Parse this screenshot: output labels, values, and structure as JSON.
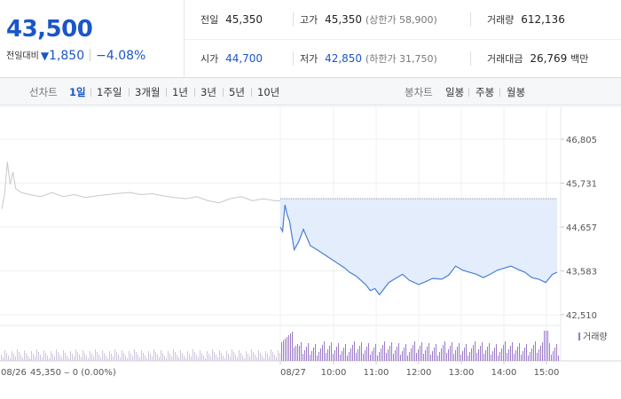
{
  "quote": {
    "price": "43,500",
    "change_label": "전일대비",
    "change_arrow": "▼",
    "change": "1,850",
    "change_pct": "−4.08%"
  },
  "info": {
    "prev_close_label": "전일",
    "prev_close": "45,350",
    "high_label": "고가",
    "high": "45,350",
    "upper_limit": "(상한가 58,900)",
    "volume_label": "거래량",
    "volume": "612,136",
    "open_label": "시가",
    "open": "44,700",
    "low_label": "저가",
    "low": "42,850",
    "lower_limit": "(하한가 31,750)",
    "amount_label": "거래대금",
    "amount": "26,769",
    "amount_unit": "백만"
  },
  "toolbar": {
    "line_label": "선차트",
    "periods": [
      "1일",
      "1주일",
      "3개월",
      "1년",
      "3년",
      "5년",
      "10년"
    ],
    "active_period": "1일",
    "candle_label": "봉차트",
    "candles": [
      "일봉",
      "주봉",
      "월봉"
    ]
  },
  "colors": {
    "accent": "#1a56c8",
    "today_line": "#4a7fd4",
    "today_fill": "#e3edfb",
    "prev_line": "#c8c8c8",
    "volume_bar": "#9a7ac8"
  },
  "chart_data": {
    "type": "line",
    "ylim": [
      42510,
      46805
    ],
    "yticks": [
      "46,805",
      "45,731",
      "44,657",
      "43,583",
      "42,510"
    ],
    "reference_price": 45350,
    "prev_day_label": "08/26",
    "prev_day_summary": "45,350 ‒ 0 (0.00%)",
    "day_label": "08/27",
    "time_labels": [
      "10:00",
      "11:00",
      "12:00",
      "13:00",
      "14:00",
      "15:00"
    ],
    "volume_legend": "거래량",
    "prev_series": [
      [
        0,
        45100
      ],
      [
        1,
        45450
      ],
      [
        2,
        46250
      ],
      [
        3,
        45700
      ],
      [
        4,
        46000
      ],
      [
        5,
        45600
      ],
      [
        7,
        45500
      ],
      [
        10,
        45450
      ],
      [
        14,
        45400
      ],
      [
        18,
        45500
      ],
      [
        22,
        45400
      ],
      [
        26,
        45450
      ],
      [
        30,
        45380
      ],
      [
        34,
        45420
      ],
      [
        38,
        45450
      ],
      [
        42,
        45480
      ],
      [
        46,
        45500
      ],
      [
        50,
        45450
      ],
      [
        54,
        45470
      ],
      [
        58,
        45420
      ],
      [
        62,
        45380
      ],
      [
        66,
        45350
      ],
      [
        70,
        45400
      ],
      [
        74,
        45300
      ],
      [
        78,
        45250
      ],
      [
        82,
        45350
      ],
      [
        86,
        45400
      ],
      [
        90,
        45300
      ],
      [
        94,
        45350
      ],
      [
        98,
        45300
      ],
      [
        100,
        45300
      ]
    ],
    "today_series": [
      [
        0,
        44650
      ],
      [
        1,
        44550
      ],
      [
        2,
        45200
      ],
      [
        3,
        44950
      ],
      [
        4,
        44800
      ],
      [
        6,
        44100
      ],
      [
        8,
        44300
      ],
      [
        10,
        44600
      ],
      [
        13,
        44200
      ],
      [
        16,
        44100
      ],
      [
        20,
        43950
      ],
      [
        24,
        43800
      ],
      [
        28,
        43650
      ],
      [
        30,
        43550
      ],
      [
        33,
        43450
      ],
      [
        35,
        43350
      ],
      [
        37,
        43250
      ],
      [
        39,
        43100
      ],
      [
        41,
        43150
      ],
      [
        43,
        43000
      ],
      [
        45,
        43150
      ],
      [
        47,
        43300
      ],
      [
        50,
        43400
      ],
      [
        53,
        43500
      ],
      [
        56,
        43350
      ],
      [
        60,
        43250
      ],
      [
        63,
        43320
      ],
      [
        66,
        43400
      ],
      [
        70,
        43380
      ],
      [
        73,
        43480
      ],
      [
        76,
        43700
      ],
      [
        79,
        43600
      ],
      [
        82,
        43550
      ],
      [
        85,
        43500
      ],
      [
        88,
        43420
      ],
      [
        91,
        43500
      ],
      [
        94,
        43600
      ],
      [
        97,
        43650
      ],
      [
        100,
        43700
      ],
      [
        103,
        43620
      ],
      [
        106,
        43550
      ],
      [
        109,
        43420
      ],
      [
        112,
        43380
      ],
      [
        115,
        43300
      ],
      [
        118,
        43500
      ],
      [
        120,
        43550
      ]
    ]
  }
}
